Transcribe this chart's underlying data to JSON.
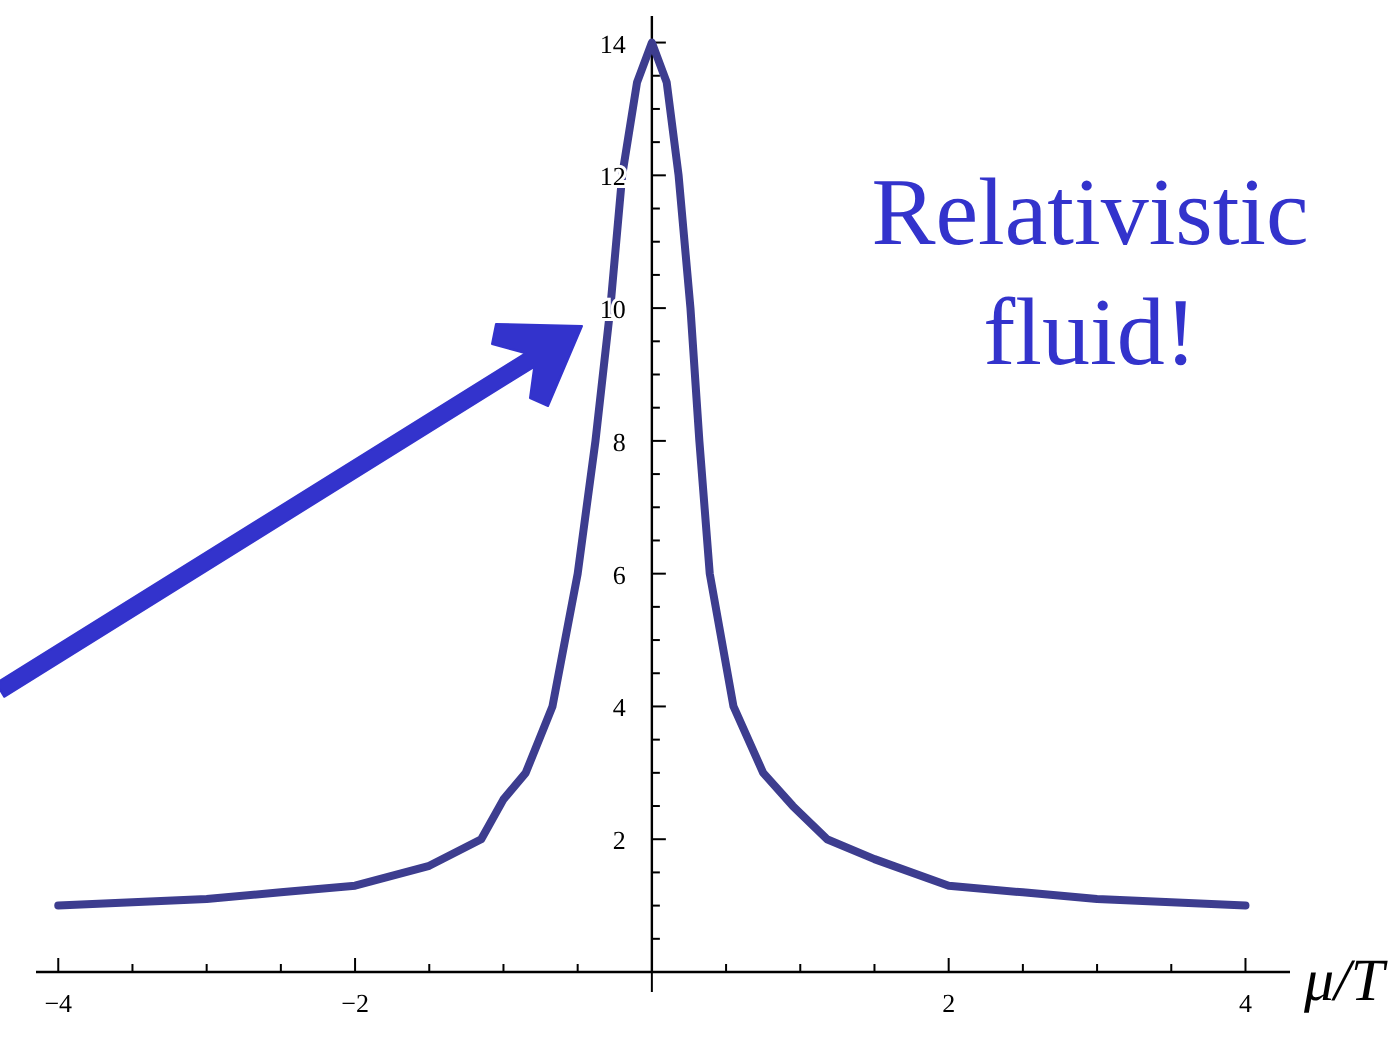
{
  "chart_data": {
    "type": "line",
    "xlabel": "μ/T",
    "annotations": [
      "Relativistic\nfluid!"
    ],
    "x": [
      -4,
      -3.5,
      -3,
      -2.5,
      -2,
      -1.5,
      -1.15,
      -1,
      -0.85,
      -0.67,
      -0.5,
      -0.38,
      -0.28,
      -0.2,
      -0.1,
      0,
      0.1,
      0.18,
      0.26,
      0.32,
      0.39,
      0.55,
      0.75,
      0.95,
      1.18,
      1.5,
      2,
      2.5,
      3,
      3.5,
      4
    ],
    "series": [
      {
        "color": "#3d3d8f",
        "values": [
          1,
          1.05,
          1.1,
          1.2,
          1.3,
          1.6,
          2,
          2.6,
          3,
          4,
          6,
          8,
          10,
          12,
          13.4,
          14,
          13.4,
          12,
          10,
          8,
          6,
          4,
          3,
          2.5,
          2,
          1.7,
          1.3,
          1.2,
          1.1,
          1.05,
          1
        ]
      }
    ],
    "xlim": [
      -4.15,
      4.3
    ],
    "ylim": [
      0,
      14.4
    ],
    "xticks": [
      -4,
      {
        "value": -3.5,
        "label": null
      },
      {
        "value": -3,
        "label": null
      },
      {
        "value": -2.5,
        "label": null
      },
      -2,
      {
        "value": -1.5,
        "label": null
      },
      {
        "value": -1,
        "label": null
      },
      {
        "value": -0.5,
        "label": null
      },
      {
        "value": 0.5,
        "label": null
      },
      {
        "value": 1,
        "label": null
      },
      {
        "value": 1.5,
        "label": null
      },
      2,
      {
        "value": 2.5,
        "label": null
      },
      {
        "value": 3,
        "label": null
      },
      {
        "value": 3.5,
        "label": null
      },
      4
    ],
    "yticks": [
      {
        "value": 0.5,
        "label": null
      },
      {
        "value": 1,
        "label": null
      },
      {
        "value": 1.5,
        "label": null
      },
      2,
      {
        "value": 2.5,
        "label": null
      },
      {
        "value": 3,
        "label": null
      },
      {
        "value": 3.5,
        "label": null
      },
      4,
      {
        "value": 4.5,
        "label": null
      },
      {
        "value": 5,
        "label": null
      },
      {
        "value": 5.5,
        "label": null
      },
      6,
      {
        "value": 6.5,
        "label": null
      },
      {
        "value": 7,
        "label": null
      },
      {
        "value": 7.5,
        "label": null
      },
      8,
      {
        "value": 8.5,
        "label": null
      },
      {
        "value": 9,
        "label": null
      },
      {
        "value": 9.5,
        "label": null
      },
      10,
      {
        "value": 10.5,
        "label": null
      },
      {
        "value": 11,
        "label": null
      },
      {
        "value": 11.5,
        "label": null
      },
      12,
      {
        "value": 12.5,
        "label": null
      },
      {
        "value": 13,
        "label": null
      },
      {
        "value": 13.5,
        "label": null
      },
      14
    ],
    "grid": false,
    "marker": "none",
    "line_style": "solid"
  }
}
